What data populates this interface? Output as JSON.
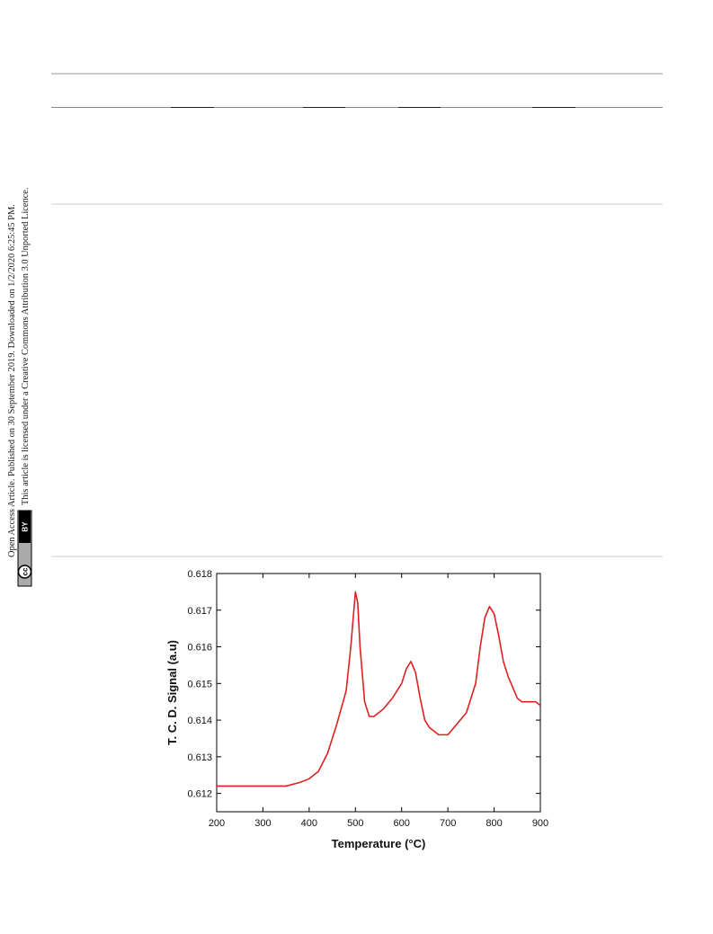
{
  "sidebar": {
    "line1": "Open Access Article. Published on 30 September 2019. Downloaded on 1/2/2020 6:25:45 PM.",
    "line2": "This article is licensed under a Creative Commons Attribution 3.0 Unported Licence.",
    "badge_cc": "cc",
    "badge_by": "BY"
  },
  "chart_data": {
    "type": "line",
    "xlabel": "Temperature (°C)",
    "ylabel": "T. C. D. Signal (a.u)",
    "color": "#e02020",
    "x": [
      200,
      250,
      300,
      350,
      380,
      400,
      420,
      440,
      460,
      480,
      490,
      500,
      505,
      510,
      520,
      530,
      540,
      560,
      580,
      600,
      610,
      620,
      630,
      640,
      650,
      660,
      680,
      700,
      720,
      740,
      760,
      770,
      780,
      790,
      800,
      810,
      820,
      830,
      840,
      850,
      860,
      880,
      890,
      900
    ],
    "values": [
      0.6122,
      0.6122,
      0.6122,
      0.6122,
      0.6123,
      0.6124,
      0.6126,
      0.6131,
      0.6139,
      0.6148,
      0.616,
      0.6175,
      0.6172,
      0.616,
      0.6145,
      0.6141,
      0.6141,
      0.6143,
      0.6146,
      0.615,
      0.6154,
      0.6156,
      0.6153,
      0.6146,
      0.614,
      0.6138,
      0.6136,
      0.6136,
      0.6139,
      0.6142,
      0.615,
      0.616,
      0.6168,
      0.6171,
      0.6169,
      0.6163,
      0.6156,
      0.6152,
      0.6149,
      0.6146,
      0.6145,
      0.6145,
      0.6145,
      0.6144
    ],
    "xlim": [
      200,
      900
    ],
    "xticks": [
      200,
      300,
      400,
      500,
      600,
      700,
      800,
      900
    ],
    "ylim": [
      0.6115,
      0.618
    ],
    "yticks": [
      0.612,
      0.613,
      0.614,
      0.615,
      0.616,
      0.617,
      0.618
    ]
  }
}
